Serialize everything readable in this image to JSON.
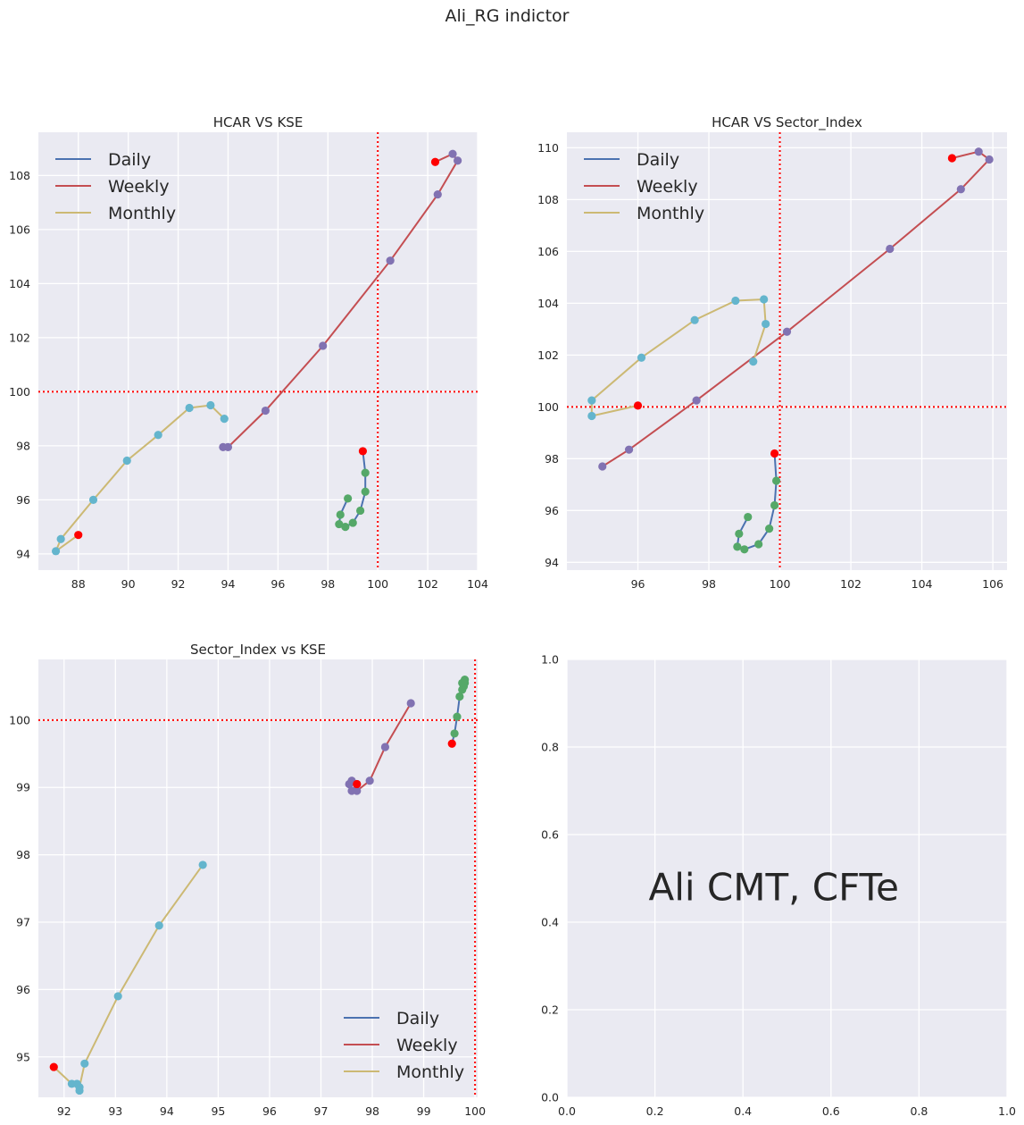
{
  "figure": {
    "suptitle": "Ali_RG indictor",
    "colors": {
      "axes_bg": "#EAEAF2",
      "grid": "#ffffff",
      "daily": "#4C72B0",
      "weekly": "#C44E52",
      "monthly": "#CCB974",
      "daily_marker": "#55A868",
      "weekly_marker": "#8172B2",
      "monthly_marker": "#64B5CD",
      "start_marker": "#FF0000",
      "ref_line": "#FF0000"
    }
  },
  "chart_data": [
    {
      "type": "line",
      "title": "HCAR VS KSE",
      "xlabel": "",
      "ylabel": "",
      "xlim": [
        86.4,
        104
      ],
      "ylim": [
        93.4,
        109.6
      ],
      "xticks": [
        88,
        90,
        92,
        94,
        96,
        98,
        100,
        102,
        104
      ],
      "yticks": [
        94,
        96,
        98,
        100,
        102,
        104,
        106,
        108
      ],
      "ref_x": 100,
      "ref_y": 100,
      "grid": true,
      "legend": {
        "position": "upper left",
        "entries": [
          "Daily",
          "Weekly",
          "Monthly"
        ]
      },
      "series": [
        {
          "name": "Daily",
          "marker": "daily",
          "start": [
            99.4,
            97.8
          ],
          "points": [
            [
              99.5,
              97.0
            ],
            [
              99.5,
              96.3
            ],
            [
              99.3,
              95.6
            ],
            [
              99.0,
              95.15
            ],
            [
              98.7,
              95.0
            ],
            [
              98.45,
              95.1
            ],
            [
              98.5,
              95.45
            ],
            [
              98.8,
              96.05
            ]
          ]
        },
        {
          "name": "Weekly",
          "marker": "weekly",
          "start": [
            102.3,
            108.5
          ],
          "points": [
            [
              103.0,
              108.8
            ],
            [
              103.2,
              108.55
            ],
            [
              102.4,
              107.3
            ],
            [
              100.5,
              104.85
            ],
            [
              97.8,
              101.7
            ],
            [
              95.5,
              99.3
            ],
            [
              94.0,
              97.95
            ],
            [
              93.8,
              97.95
            ]
          ]
        },
        {
          "name": "Monthly",
          "marker": "monthly",
          "start": [
            88.0,
            94.7
          ],
          "points": [
            [
              87.1,
              94.1
            ],
            [
              87.3,
              94.55
            ],
            [
              88.6,
              96.0
            ],
            [
              89.95,
              97.45
            ],
            [
              91.2,
              98.4
            ],
            [
              92.45,
              99.4
            ],
            [
              93.3,
              99.5
            ],
            [
              93.85,
              99.0
            ]
          ]
        }
      ]
    },
    {
      "type": "line",
      "title": "HCAR VS Sector_Index",
      "xlabel": "",
      "ylabel": "",
      "xlim": [
        94.0,
        106.4
      ],
      "ylim": [
        93.7,
        110.6
      ],
      "xticks": [
        96,
        98,
        100,
        102,
        104,
        106
      ],
      "yticks": [
        94,
        96,
        98,
        100,
        102,
        104,
        106,
        108,
        110
      ],
      "ref_x": 100,
      "ref_y": 100,
      "grid": true,
      "legend": {
        "position": "upper left",
        "entries": [
          "Daily",
          "Weekly",
          "Monthly"
        ]
      },
      "series": [
        {
          "name": "Daily",
          "marker": "daily",
          "start": [
            99.85,
            98.2
          ],
          "points": [
            [
              99.9,
              97.15
            ],
            [
              99.85,
              96.2
            ],
            [
              99.7,
              95.3
            ],
            [
              99.4,
              94.7
            ],
            [
              99.0,
              94.5
            ],
            [
              98.8,
              94.6
            ],
            [
              98.85,
              95.1
            ],
            [
              99.1,
              95.75
            ]
          ]
        },
        {
          "name": "Weekly",
          "marker": "weekly",
          "start": [
            104.85,
            109.6
          ],
          "points": [
            [
              105.6,
              109.85
            ],
            [
              105.9,
              109.55
            ],
            [
              105.1,
              108.4
            ],
            [
              103.1,
              106.1
            ],
            [
              100.2,
              102.9
            ],
            [
              97.65,
              100.25
            ],
            [
              95.75,
              98.35
            ],
            [
              95.0,
              97.7
            ]
          ]
        },
        {
          "name": "Monthly",
          "marker": "monthly",
          "start": [
            96.0,
            100.05
          ],
          "points": [
            [
              94.7,
              99.65
            ],
            [
              94.7,
              100.25
            ],
            [
              96.1,
              101.9
            ],
            [
              97.6,
              103.35
            ],
            [
              98.75,
              104.1
            ],
            [
              99.55,
              104.15
            ],
            [
              99.6,
              103.2
            ],
            [
              99.25,
              101.75
            ]
          ]
        }
      ]
    },
    {
      "type": "line",
      "title": "Sector_Index vs KSE",
      "xlabel": "",
      "ylabel": "",
      "xlim": [
        91.5,
        100.05
      ],
      "ylim": [
        94.4,
        100.9
      ],
      "xticks": [
        92,
        93,
        94,
        95,
        96,
        97,
        98,
        99,
        100
      ],
      "yticks": [
        95,
        96,
        97,
        98,
        99,
        100
      ],
      "ref_x": 100,
      "ref_y": 100,
      "grid": true,
      "legend": {
        "position": "lower right",
        "entries": [
          "Daily",
          "Weekly",
          "Monthly"
        ]
      },
      "series": [
        {
          "name": "Daily",
          "marker": "daily",
          "start": [
            99.55,
            99.65
          ],
          "points": [
            [
              99.6,
              99.8
            ],
            [
              99.65,
              100.05
            ],
            [
              99.7,
              100.35
            ],
            [
              99.75,
              100.45
            ],
            [
              99.78,
              100.5
            ],
            [
              99.75,
              100.55
            ],
            [
              99.8,
              100.55
            ],
            [
              99.8,
              100.6
            ]
          ]
        },
        {
          "name": "Weekly",
          "marker": "weekly",
          "start": [
            97.7,
            99.05
          ],
          "points": [
            [
              97.6,
              98.95
            ],
            [
              97.55,
              99.05
            ],
            [
              97.6,
              99.1
            ],
            [
              97.7,
              99.05
            ],
            [
              97.7,
              98.95
            ],
            [
              97.95,
              99.1
            ],
            [
              98.25,
              99.6
            ],
            [
              98.75,
              100.25
            ]
          ]
        },
        {
          "name": "Monthly",
          "marker": "monthly",
          "start": [
            91.8,
            94.85
          ],
          "points": [
            [
              92.15,
              94.6
            ],
            [
              92.25,
              94.6
            ],
            [
              92.3,
              94.5
            ],
            [
              92.3,
              94.55
            ],
            [
              92.4,
              94.9
            ],
            [
              93.05,
              95.9
            ],
            [
              93.85,
              96.95
            ],
            [
              94.7,
              97.85
            ]
          ]
        }
      ]
    }
  ],
  "empty_panel": {
    "xlim": [
      0,
      1
    ],
    "ylim": [
      0,
      1
    ],
    "xticks": [
      "0.0",
      "0.2",
      "0.4",
      "0.6",
      "0.8",
      "1.0"
    ],
    "yticks": [
      "0.0",
      "0.2",
      "0.4",
      "0.6",
      "0.8",
      "1.0"
    ],
    "note": "Ali CMT, CFTe"
  }
}
